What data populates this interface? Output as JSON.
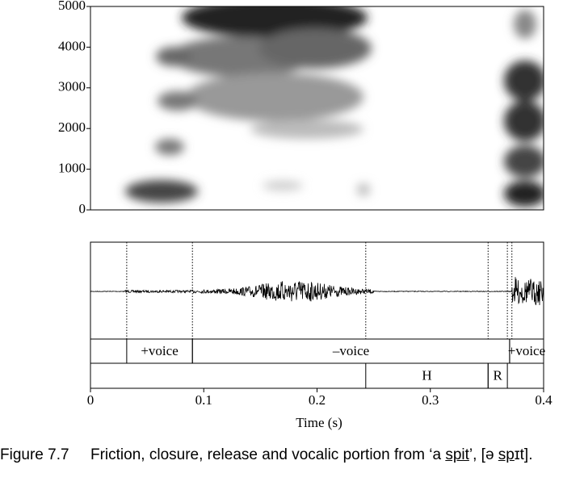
{
  "spectrogram": {
    "ylim": [
      0,
      5000
    ],
    "yticks": [
      0,
      1000,
      2000,
      3000,
      4000,
      5000
    ]
  },
  "waveform": {
    "boundaries": [
      0.032,
      0.09,
      0.243,
      0.351,
      0.368,
      0.372
    ]
  },
  "tiers": [
    {
      "intervals": [
        {
          "start": 0.032,
          "end": 0.09,
          "label": "+voice"
        },
        {
          "start": 0.09,
          "end": 0.37,
          "label": "–voice"
        },
        {
          "start": 0.37,
          "end": 0.4,
          "label": "+voice"
        }
      ]
    },
    {
      "intervals": [
        {
          "start": 0.243,
          "end": 0.351,
          "label": "H"
        },
        {
          "start": 0.351,
          "end": 0.368,
          "label": "R"
        }
      ]
    }
  ],
  "time_axis": {
    "xlim": [
      0,
      0.4
    ],
    "xticks": [
      0,
      0.1,
      0.2,
      0.3,
      0.4
    ],
    "label": "Time (s)"
  },
  "caption": {
    "number": "Figure 7.7",
    "segments": [
      {
        "text": "Friction, closure, release and vocalic portion from ‘a ",
        "underline": false
      },
      {
        "text": "spit",
        "underline": true
      },
      {
        "text": "’, [ə ",
        "underline": false
      },
      {
        "text": "sp",
        "underline": true
      },
      {
        "text": "ɪt].",
        "underline": false
      }
    ]
  }
}
